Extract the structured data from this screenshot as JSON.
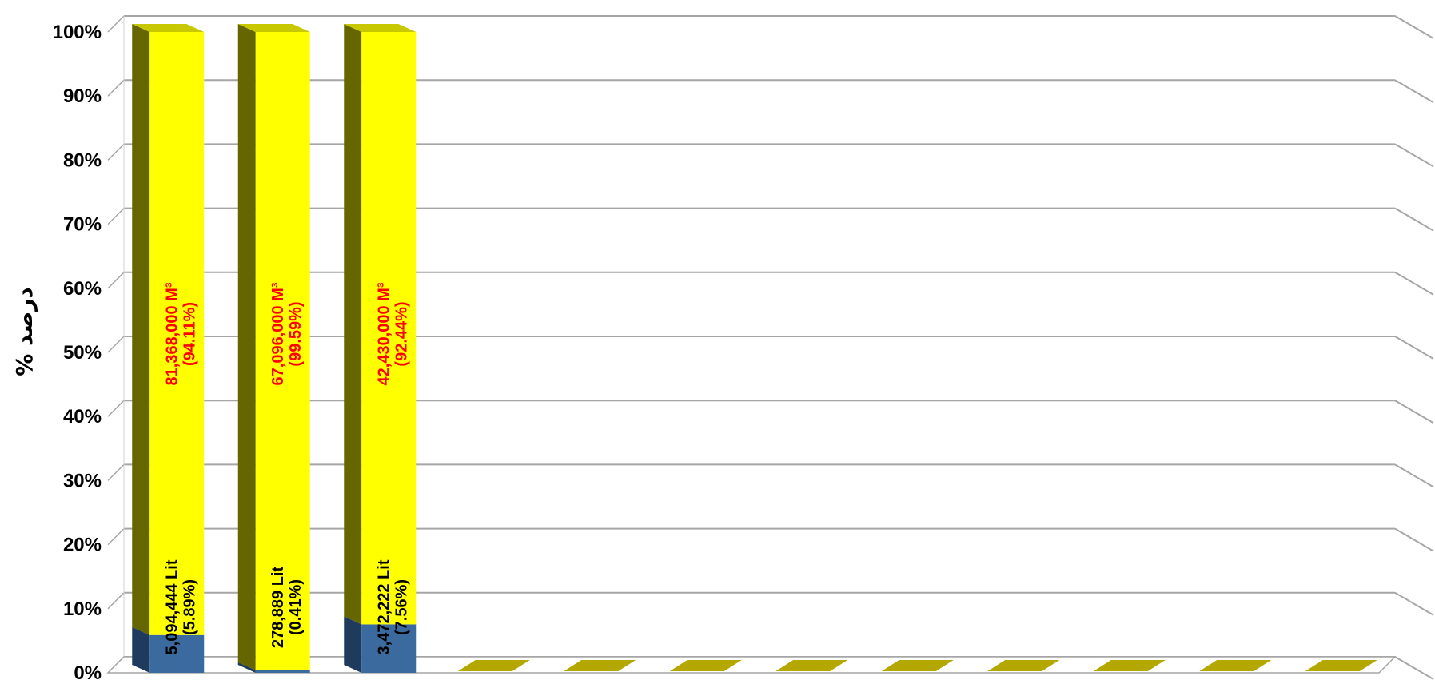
{
  "chart_data": {
    "type": "bar",
    "stacked": true,
    "percent_stacked": true,
    "three_d": true,
    "ylabel": "% درصد",
    "ylim": [
      0,
      100
    ],
    "yticks": [
      "0%",
      "10%",
      "20%",
      "30%",
      "40%",
      "50%",
      "60%",
      "70%",
      "80%",
      "90%",
      "100%"
    ],
    "grid": true,
    "category_count": 12,
    "series": [
      {
        "color": "#3a6a9e",
        "values": [
          5.89,
          0.41,
          7.56,
          0,
          0,
          0,
          0,
          0,
          0,
          0,
          0,
          0
        ],
        "labels": [
          [
            "5,094,444 Lit",
            "(5.89%)"
          ],
          [
            "278,889 Lit",
            "(0.41%)"
          ],
          [
            "3,472,222 Lit",
            "(7.56%)"
          ]
        ]
      },
      {
        "color": "#ffff00",
        "values": [
          94.11,
          99.59,
          92.44,
          0,
          0,
          0,
          0,
          0,
          0,
          0,
          0,
          0
        ],
        "labels": [
          [
            "81,368,000 M³",
            "(94.11%)"
          ],
          [
            "67,096,000 M³",
            "(99.59%)"
          ],
          [
            "42,430,000 M³",
            "(92.44%)"
          ]
        ]
      }
    ]
  }
}
